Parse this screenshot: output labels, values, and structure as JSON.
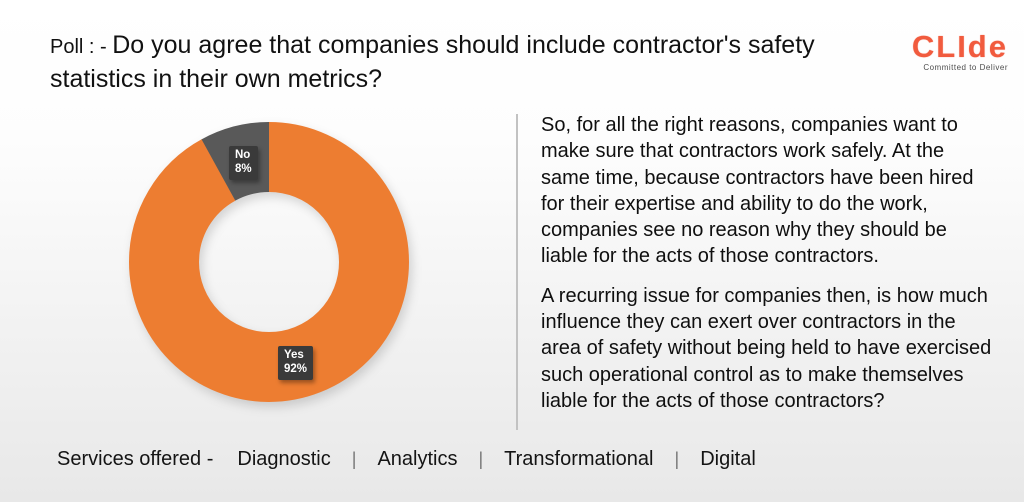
{
  "slide": {
    "title_prefix": "Poll : - ",
    "title_main": "Do you agree that companies should include contractor's safety statistics in their own metrics?"
  },
  "logo": {
    "word": "CLIde",
    "tagline": "Committed to Deliver",
    "brand_color": "#f15b3e"
  },
  "chart_data": {
    "type": "pie",
    "subtype": "donut",
    "title": "",
    "categories": [
      "Yes",
      "No"
    ],
    "values": [
      92,
      8
    ],
    "colors": [
      "#ED7D31",
      "#595959"
    ],
    "start_angle_deg": -90,
    "direction": "clockwise",
    "inner_radius_ratio": 0.5,
    "legend": "none",
    "data_labels": [
      "Yes 92%",
      "No 8%"
    ]
  },
  "chart": {
    "yes_label": "Yes",
    "yes_value": "92%",
    "no_label": "No",
    "no_value": "8%"
  },
  "body": {
    "paragraph1": "So, for all the right reasons, companies want to make sure that contractors work safely. At the same time, because contractors have been hired for their expertise and ability to do the work, companies see no reason why they should be liable for the acts of those contractors.",
    "paragraph2": "A recurring issue for companies then, is how much influence they can exert over contractors in the area of safety without being held to have exercised such operational control as to make themselves liable for the acts of those contractors?"
  },
  "footer": {
    "prefix": "Services offered -",
    "separator": "|",
    "items": [
      "Diagnostic",
      "Analytics",
      "Transformational",
      "Digital"
    ]
  }
}
